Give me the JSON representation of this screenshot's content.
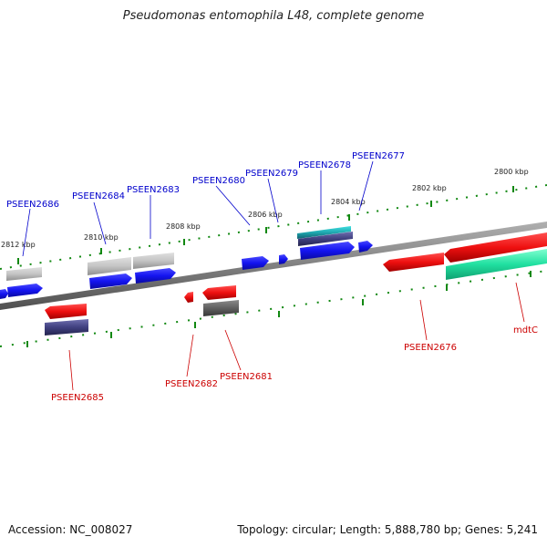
{
  "title": "Pseudomonas entomophila L48, complete genome",
  "footer": {
    "accession": "Accession: NC_008027",
    "summary": "Topology: circular; Length: 5,888,780 bp; Genes: 5,241"
  },
  "scale_labels": [
    "2812 kbp",
    "2810 kbp",
    "2808 kbp",
    "2806 kbp",
    "2804 kbp",
    "2802 kbp",
    "2800 kbp"
  ],
  "gene_labels_forward": [
    "PSEEN2686",
    "PSEEN2684",
    "PSEEN2683",
    "PSEEN2680",
    "PSEEN2679",
    "PSEEN2678",
    "PSEEN2677"
  ],
  "gene_labels_reverse": [
    "PSEEN2685",
    "PSEEN2682",
    "PSEEN2681",
    "PSEEN2676",
    "mdtC"
  ],
  "colors": {
    "forward_strand_label": "#0000cc",
    "reverse_strand_label": "#cc0000",
    "forward_gene": "#1010ee",
    "reverse_gene": "#ee1010",
    "backbone": "#808080",
    "tick": "#118811"
  }
}
